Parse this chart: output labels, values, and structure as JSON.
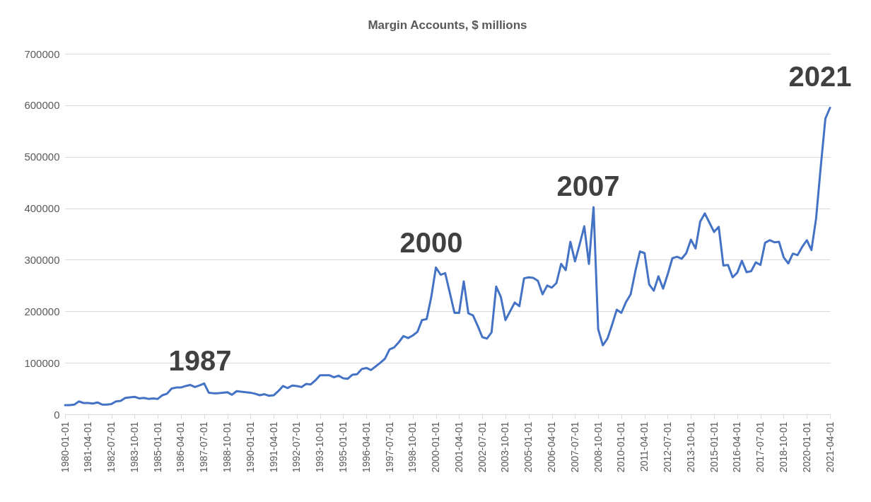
{
  "chart_data": {
    "type": "line",
    "title": "Margin Accounts, $ millions",
    "categories": [
      "1980-01-01",
      null,
      null,
      null,
      null,
      "1981-04-01",
      null,
      null,
      null,
      null,
      "1982-07-01",
      null,
      null,
      null,
      null,
      "1983-10-01",
      null,
      null,
      null,
      null,
      "1985-01-01",
      null,
      null,
      null,
      null,
      "1986-04-01",
      null,
      null,
      null,
      null,
      "1987-07-01",
      null,
      null,
      null,
      null,
      "1988-10-01",
      null,
      null,
      null,
      null,
      "1990-01-01",
      null,
      null,
      null,
      null,
      "1991-04-01",
      null,
      null,
      null,
      null,
      "1992-07-01",
      null,
      null,
      null,
      null,
      "1993-10-01",
      null,
      null,
      null,
      null,
      "1995-01-01",
      null,
      null,
      null,
      null,
      "1996-04-01",
      null,
      null,
      null,
      null,
      "1997-07-01",
      null,
      null,
      null,
      null,
      "1998-10-01",
      null,
      null,
      null,
      null,
      "2000-01-01",
      null,
      null,
      null,
      null,
      "2001-04-01",
      null,
      null,
      null,
      null,
      "2002-07-01",
      null,
      null,
      null,
      null,
      "2003-10-01",
      null,
      null,
      null,
      null,
      "2005-01-01",
      null,
      null,
      null,
      null,
      "2006-04-01",
      null,
      null,
      null,
      null,
      "2007-07-01",
      null,
      null,
      null,
      null,
      "2008-10-01",
      null,
      null,
      null,
      null,
      "2010-01-01",
      null,
      null,
      null,
      null,
      "2011-04-01",
      null,
      null,
      null,
      null,
      "2012-07-01",
      null,
      null,
      null,
      null,
      "2013-10-01",
      null,
      null,
      null,
      null,
      "2015-01-01",
      null,
      null,
      null,
      null,
      "2016-04-01",
      null,
      null,
      null,
      null,
      "2017-07-01",
      null,
      null,
      null,
      null,
      "2018-10-01",
      null,
      null,
      null,
      null,
      "2020-01-01",
      null,
      null,
      null,
      null,
      "2021-04-01"
    ],
    "series": [
      {
        "color": "#4472c4",
        "values": [
          18000,
          18000,
          19000,
          25000,
          22000,
          22000,
          21000,
          23000,
          19000,
          19000,
          20000,
          25000,
          26000,
          32000,
          33000,
          34000,
          31000,
          32000,
          30000,
          31000,
          30000,
          37000,
          40000,
          50000,
          52000,
          52000,
          55000,
          57000,
          53000,
          56000,
          60000,
          42000,
          41000,
          41000,
          42000,
          43000,
          38000,
          45000,
          44000,
          43000,
          42000,
          40000,
          37000,
          39000,
          36000,
          37000,
          45000,
          55000,
          51000,
          56000,
          55000,
          53000,
          59000,
          58000,
          66000,
          76000,
          76000,
          76000,
          72000,
          75000,
          70000,
          69000,
          77000,
          78000,
          88000,
          90000,
          86000,
          93000,
          100000,
          108000,
          126000,
          130000,
          140000,
          152000,
          148000,
          153000,
          160000,
          183000,
          185000,
          228000,
          285000,
          271000,
          274000,
          236000,
          197000,
          197000,
          258000,
          196000,
          192000,
          172000,
          150000,
          147000,
          159000,
          248000,
          228000,
          183000,
          200000,
          217000,
          210000,
          264000,
          266000,
          265000,
          259000,
          233000,
          250000,
          246000,
          255000,
          292000,
          280000,
          335000,
          297000,
          330000,
          365000,
          292000,
          402000,
          165000,
          134000,
          147000,
          174000,
          203000,
          197000,
          218000,
          233000,
          277000,
          316000,
          313000,
          252000,
          240000,
          268000,
          244000,
          272000,
          303000,
          306000,
          302000,
          313000,
          339000,
          322000,
          374000,
          390000,
          372000,
          354000,
          364000,
          289000,
          290000,
          266000,
          275000,
          298000,
          276000,
          278000,
          295000,
          290000,
          333000,
          338000,
          334000,
          335000,
          305000,
          293000,
          312000,
          309000,
          325000,
          338000,
          319000,
          380000,
          480000,
          574000,
          595000
        ]
      }
    ],
    "ylim": [
      0,
      700000
    ],
    "yticks": [
      0,
      100000,
      200000,
      300000,
      400000,
      500000,
      600000,
      700000
    ],
    "grid": "y",
    "annotations": [
      "1987",
      "2000",
      "2007",
      "2021"
    ]
  }
}
